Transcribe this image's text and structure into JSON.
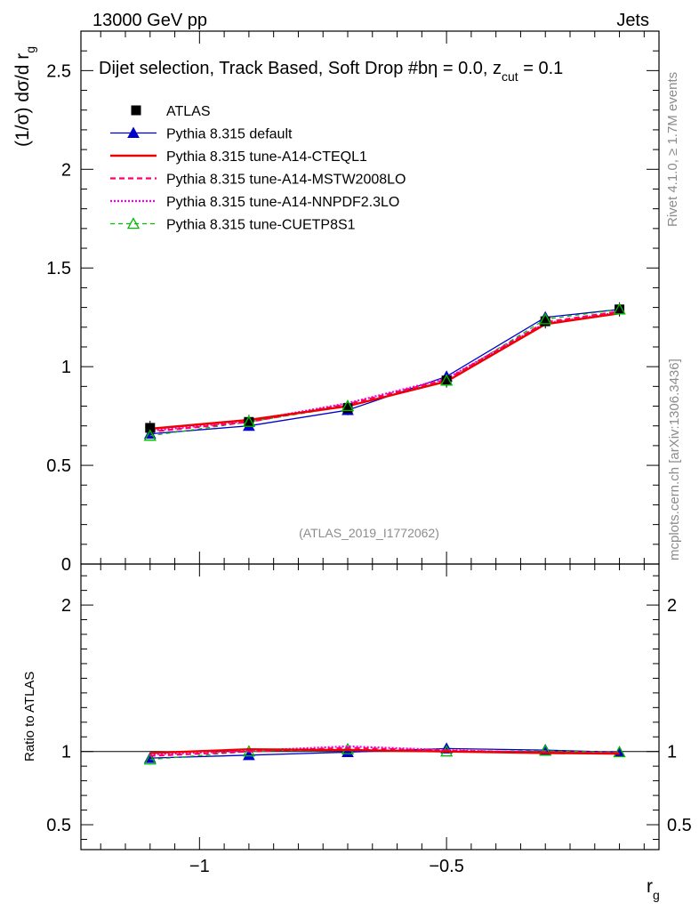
{
  "header": {
    "energy": "13000 GeV pp",
    "process": "Jets"
  },
  "side": {
    "rivet": "Rivet 4.1.0, ≥ 1.7M events",
    "mcplots": "mcplots.cern.ch [arXiv:1306.3436]"
  },
  "plot": {
    "title": "Dijet selection, Track Based, Soft Drop #bη = 0.0, z",
    "title_sub": "cut",
    "title_end": " = 0.1",
    "ylabel_main": "(1/σ) dσ/d r",
    "ylabel_sub": "g",
    "ylabel_ratio": "Ratio to ATLAS",
    "xlabel": "r",
    "xlabel_sub": "g",
    "watermark": "(ATLAS_2019_I1772062)"
  },
  "legend": [
    {
      "label": "ATLAS",
      "color": "#000000"
    },
    {
      "label": "Pythia 8.315 default",
      "color": "#0000cc"
    },
    {
      "label": "Pythia 8.315 tune-A14-CTEQL1",
      "color": "#ee0000"
    },
    {
      "label": "Pythia 8.315 tune-A14-MSTW2008LO",
      "color": "#ff0066"
    },
    {
      "label": "Pythia 8.315 tune-A14-NNPDF2.3LO",
      "color": "#ee00ee"
    },
    {
      "label": "Pythia 8.315 tune-CUETP8S1",
      "color": "#00bb00"
    }
  ],
  "chart_data": [
    {
      "type": "line",
      "panel": "main",
      "xlim": [
        -1.24,
        -0.07
      ],
      "ylim": [
        0,
        2.7
      ],
      "x": [
        -1.1,
        -0.9,
        -0.7,
        -0.5,
        -0.3,
        -0.15
      ],
      "series": [
        {
          "name": "ATLAS",
          "values": [
            0.69,
            0.72,
            0.79,
            0.93,
            1.23,
            1.29
          ]
        },
        {
          "name": "Pythia 8.315 default",
          "values": [
            0.66,
            0.7,
            0.78,
            0.95,
            1.25,
            1.29
          ]
        },
        {
          "name": "Pythia 8.315 tune-A14-CTEQL1",
          "values": [
            0.685,
            0.73,
            0.8,
            0.925,
            1.215,
            1.27
          ]
        },
        {
          "name": "Pythia 8.315 tune-A14-MSTW2008LO",
          "values": [
            0.67,
            0.72,
            0.81,
            0.935,
            1.225,
            1.28
          ]
        },
        {
          "name": "Pythia 8.315 tune-A14-NNPDF2.3LO",
          "values": [
            0.675,
            0.725,
            0.815,
            0.94,
            1.22,
            1.275
          ]
        },
        {
          "name": "Pythia 8.315 tune-CUETP8S1",
          "values": [
            0.65,
            0.72,
            0.8,
            0.93,
            1.24,
            1.29
          ]
        }
      ],
      "yticks": [
        "0",
        "0.5",
        "1",
        "1.5",
        "2",
        "2.5"
      ],
      "ytick_values": [
        0,
        0.5,
        1,
        1.5,
        2,
        2.5
      ]
    },
    {
      "type": "line",
      "panel": "ratio",
      "xlim": [
        -1.24,
        -0.07
      ],
      "ylim": [
        0.33,
        2.28
      ],
      "x": [
        -1.1,
        -0.9,
        -0.7,
        -0.5,
        -0.3,
        -0.15
      ],
      "series": [
        {
          "name": "Pythia 8.315 default",
          "values": [
            0.955,
            0.975,
            0.995,
            1.02,
            1.01,
            0.995
          ]
        },
        {
          "name": "Pythia 8.315 tune-A14-CTEQL1",
          "values": [
            0.99,
            1.015,
            1.01,
            1.0,
            0.99,
            0.985
          ]
        },
        {
          "name": "Pythia 8.315 tune-A14-MSTW2008LO",
          "values": [
            0.97,
            1.0,
            1.025,
            1.005,
            0.995,
            0.99
          ]
        },
        {
          "name": "Pythia 8.315 tune-A14-NNPDF2.3LO",
          "values": [
            0.98,
            1.005,
            1.035,
            1.01,
            0.99,
            0.99
          ]
        },
        {
          "name": "Pythia 8.315 tune-CUETP8S1",
          "values": [
            0.945,
            1.0,
            1.015,
            1.0,
            1.005,
            0.995
          ]
        }
      ],
      "yticks": [
        "0.5",
        "1",
        "2"
      ],
      "ytick_values": [
        0.5,
        1,
        2
      ],
      "xticks": [
        "−1",
        "−0.5"
      ],
      "xtick_values": [
        -1,
        -0.5
      ]
    }
  ]
}
